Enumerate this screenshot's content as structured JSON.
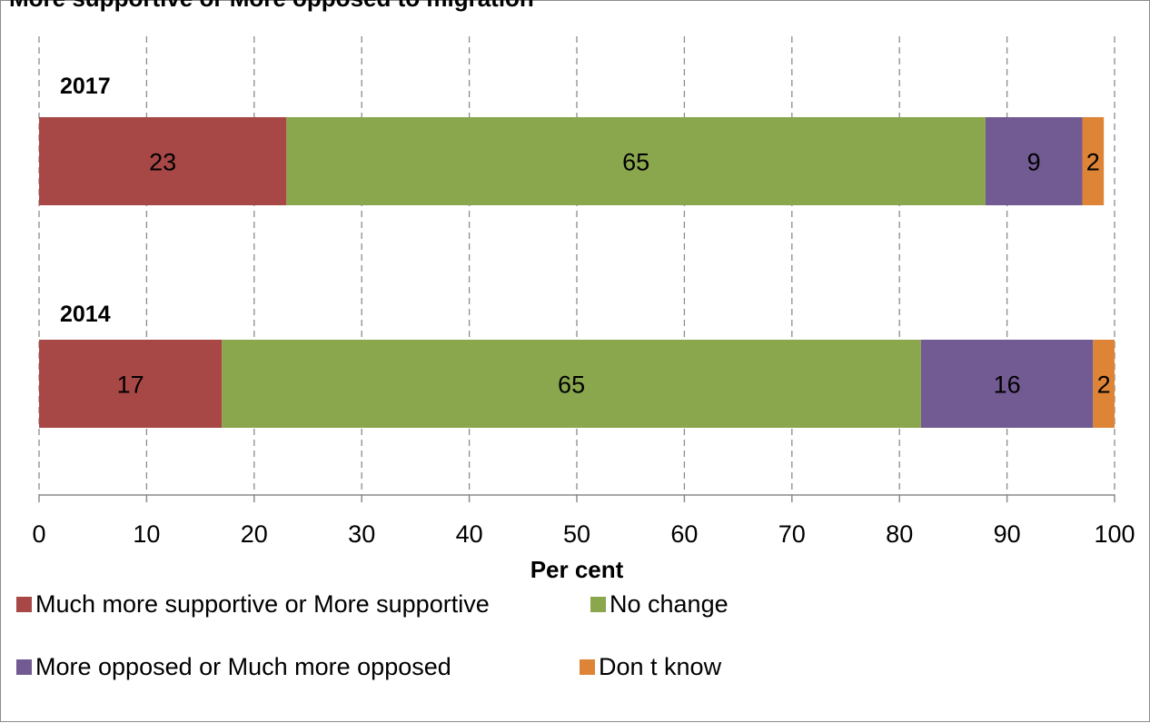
{
  "title": "More supportive or More opposed to migration",
  "chart_data": {
    "type": "bar",
    "orientation": "horizontal",
    "stacked": true,
    "categories": [
      "2017",
      "2014"
    ],
    "series": [
      {
        "name": "Much more supportive or More supportive",
        "color": "#a84846",
        "values": [
          23,
          17
        ]
      },
      {
        "name": "No change",
        "color": "#8aa74e",
        "values": [
          65,
          65
        ]
      },
      {
        "name": "More opposed or Much more opposed",
        "color": "#725a92",
        "values": [
          9,
          16
        ]
      },
      {
        "name": "Don t know",
        "color": "#dd8437",
        "values": [
          2,
          2
        ]
      }
    ],
    "data_labels": [
      [
        "23",
        "65",
        "9",
        "2"
      ],
      [
        "17",
        "65",
        "16",
        "2"
      ]
    ],
    "xlabel": "Per cent",
    "ylabel": "",
    "xlim": [
      0,
      100
    ],
    "xticks": [
      0,
      10,
      20,
      30,
      40,
      50,
      60,
      70,
      80,
      90,
      100
    ],
    "grid": true,
    "legend_position": "bottom"
  }
}
